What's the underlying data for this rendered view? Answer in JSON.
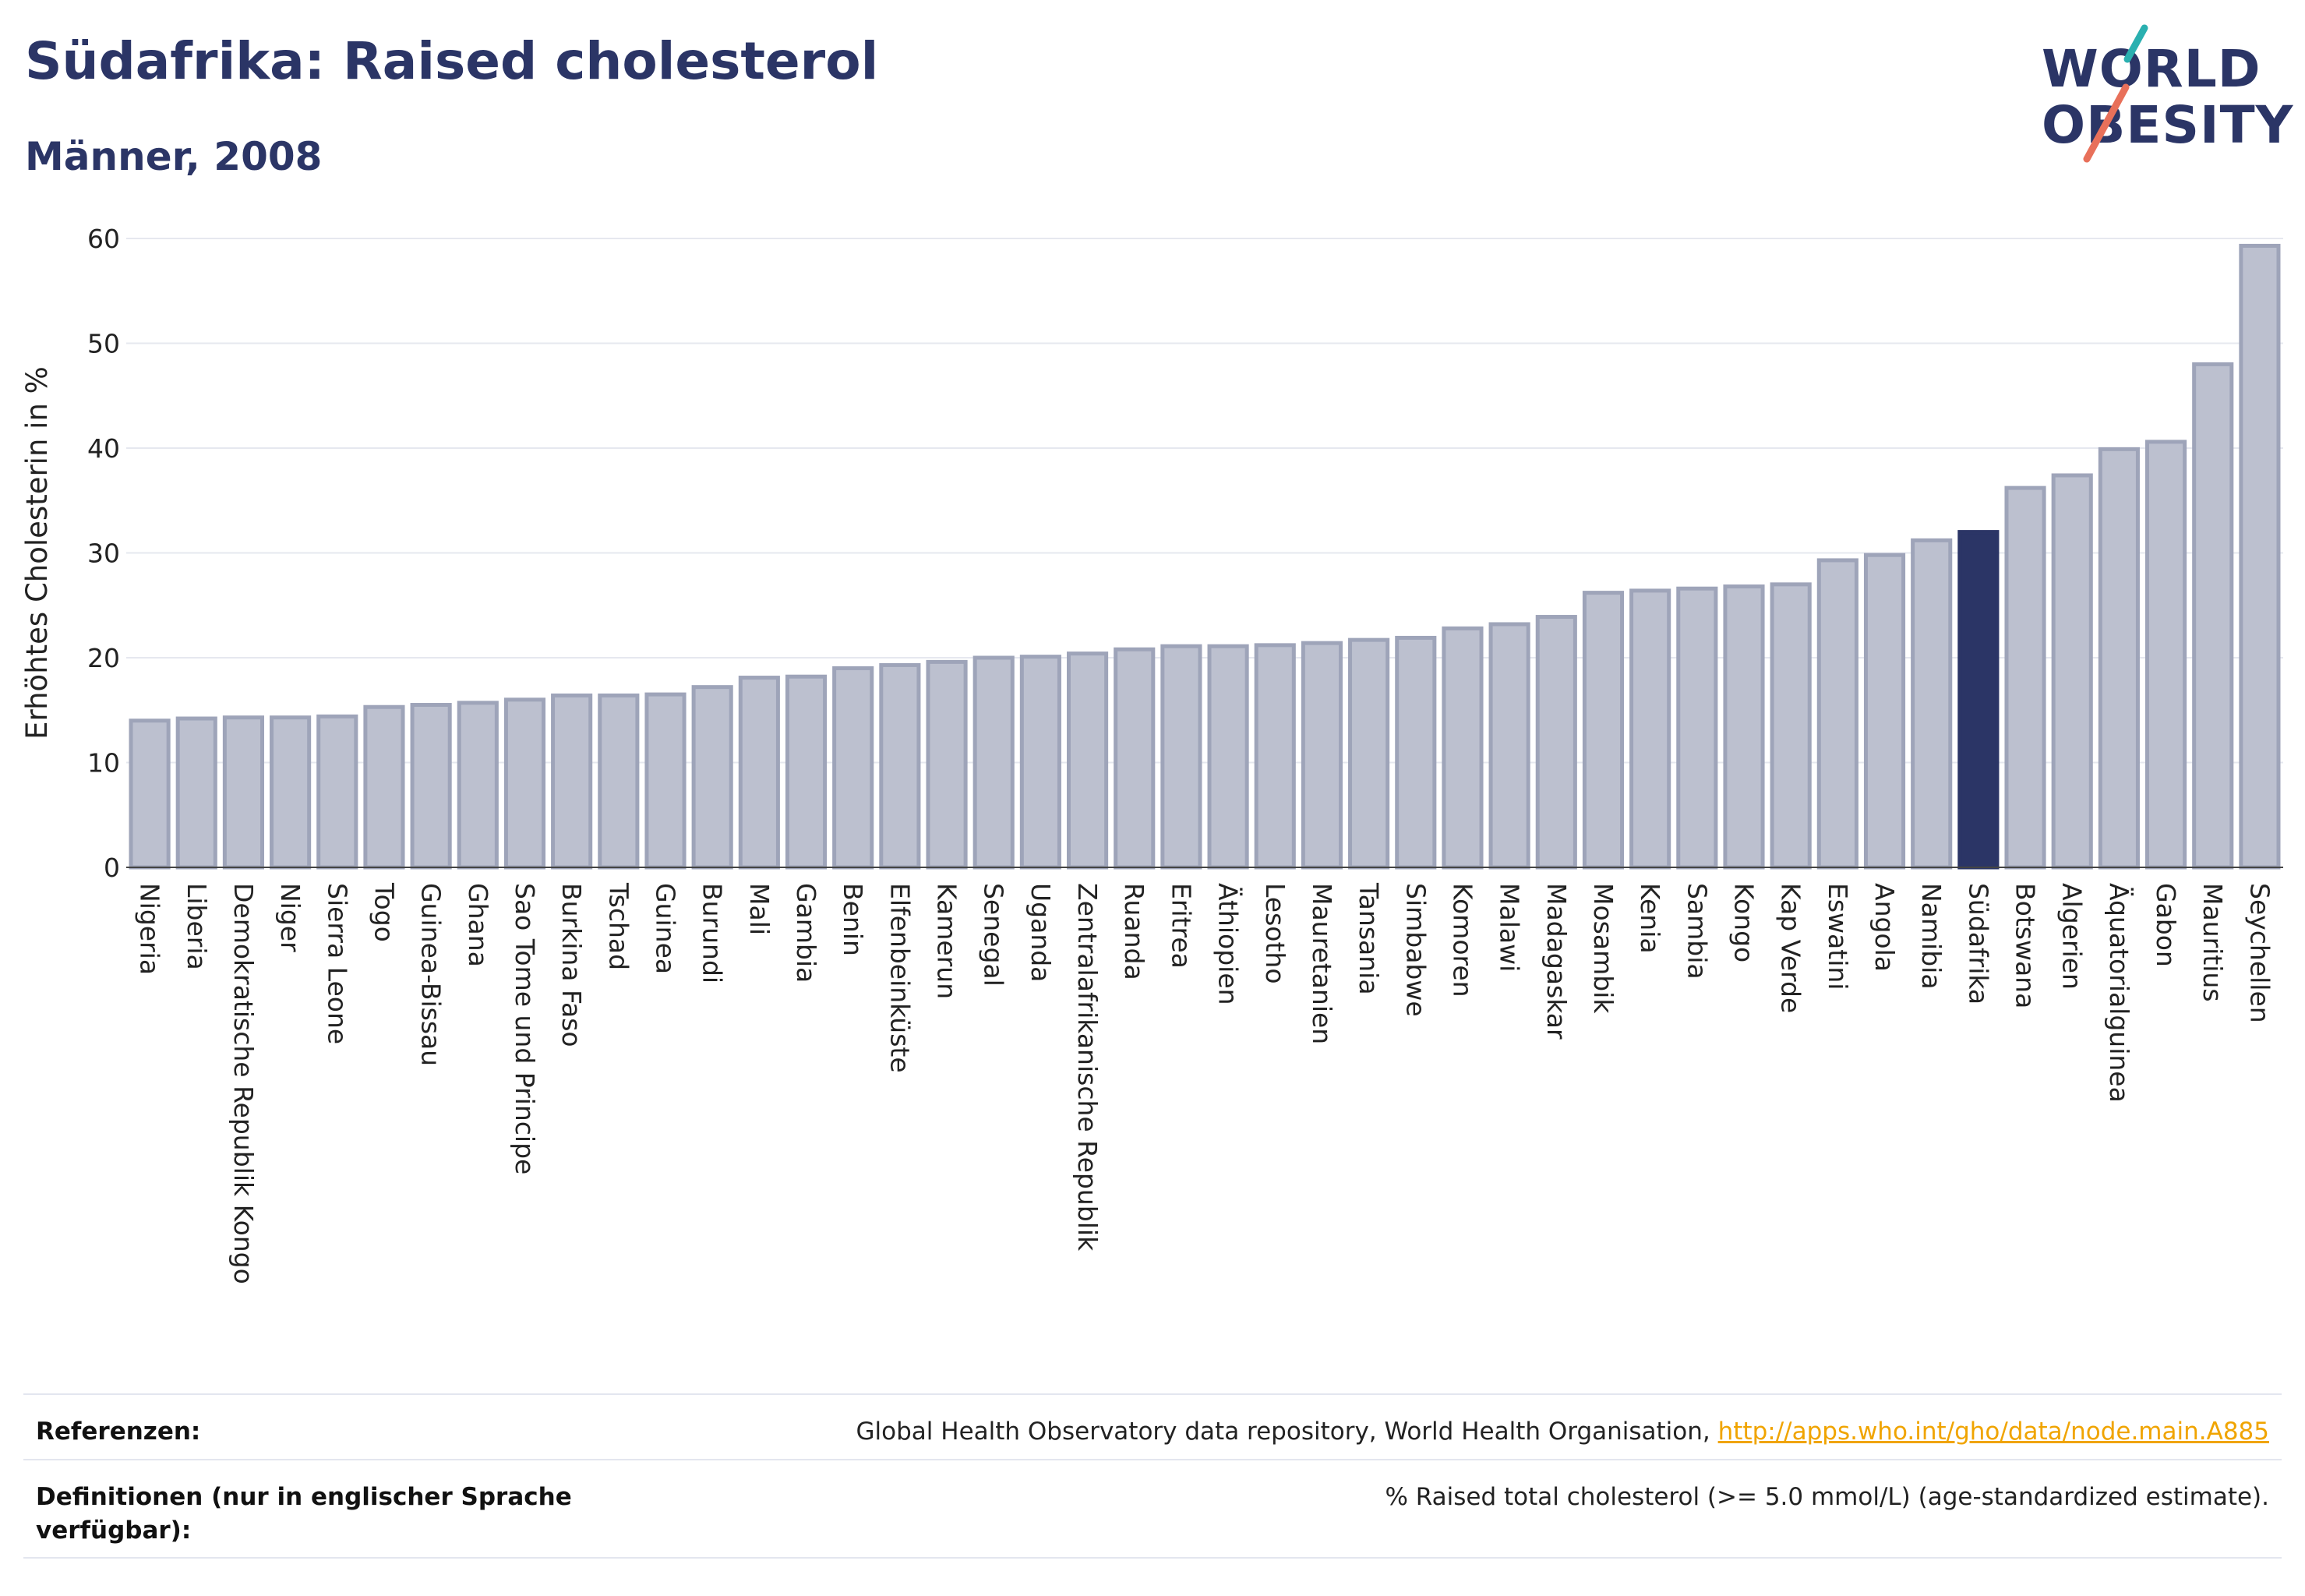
{
  "header": {
    "title": "Südafrika: Raised cholesterol",
    "subtitle": "Männer, 2008"
  },
  "logo": {
    "line1": "WORLD",
    "line2": "OBESITY",
    "slash_colors": [
      "#2ab0b0",
      "#e8705a"
    ]
  },
  "colors": {
    "bar": "#bcc0cf",
    "bar_stroke": "#9ea4b9",
    "highlight": "#2b3566",
    "grid": "#e6e8ef",
    "title": "#2b3566",
    "link": "#f0a400"
  },
  "chart_data": {
    "type": "bar",
    "title": "Südafrika: Raised cholesterol",
    "subtitle": "Männer, 2008",
    "xlabel": "",
    "ylabel": "Erhöhtes Cholesterin in %",
    "ylim": [
      0,
      60
    ],
    "yticks": [
      0,
      10,
      20,
      30,
      40,
      50,
      60
    ],
    "grid": true,
    "highlight": "Südafrika",
    "categories": [
      "Nigeria",
      "Liberia",
      "Demokratische Republik Kongo",
      "Niger",
      "Sierra Leone",
      "Togo",
      "Guinea-Bissau",
      "Ghana",
      "Sao Tome und Principe",
      "Burkina Faso",
      "Tschad",
      "Guinea",
      "Burundi",
      "Mali",
      "Gambia",
      "Benin",
      "Elfenbeinküste",
      "Kamerun",
      "Senegal",
      "Uganda",
      "Zentralafrikanische Republik",
      "Ruanda",
      "Eritrea",
      "Äthiopien",
      "Lesotho",
      "Mauretanien",
      "Tansania",
      "Simbabwe",
      "Komoren",
      "Malawi",
      "Madagaskar",
      "Mosambik",
      "Kenia",
      "Sambia",
      "Kongo",
      "Kap Verde",
      "Eswatini",
      "Angola",
      "Namibia",
      "Südafrika",
      "Botswana",
      "Algerien",
      "Äquatorialguinea",
      "Gabon",
      "Mauritius",
      "Seychellen"
    ],
    "values": [
      14.0,
      14.2,
      14.3,
      14.3,
      14.4,
      15.3,
      15.5,
      15.7,
      16.0,
      16.4,
      16.4,
      16.5,
      17.2,
      18.1,
      18.2,
      19.0,
      19.3,
      19.6,
      20.0,
      20.1,
      20.4,
      20.8,
      21.1,
      21.1,
      21.2,
      21.4,
      21.7,
      21.9,
      22.8,
      23.2,
      23.9,
      26.2,
      26.4,
      26.6,
      26.8,
      27.0,
      29.3,
      29.8,
      31.2,
      32.0,
      36.2,
      37.4,
      39.9,
      40.6,
      48.0,
      59.3
    ]
  },
  "references": {
    "label": "Referenzen:",
    "text": "Global Health Observatory data repository, World Health Organisation, ",
    "link": "http://apps.who.int/gho/data/node.main.A885"
  },
  "definitions": {
    "label": "Definitionen (nur in englischer Sprache verfügbar):",
    "text": "% Raised total cholesterol (>= 5.0 mmol/L) (age-standardized estimate)."
  }
}
